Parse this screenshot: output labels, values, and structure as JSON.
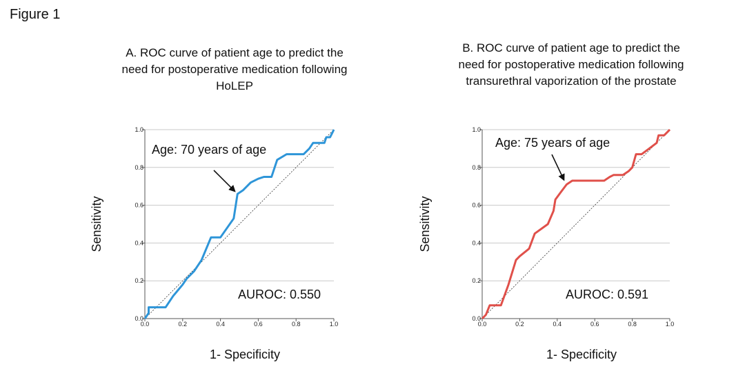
{
  "figure_label": "Figure 1",
  "chart_data": [
    {
      "type": "line",
      "title": "A. ROC curve of patient age to predict the\nneed for postoperative medication following\nHoLEP",
      "xlabel": "1- Specificity",
      "ylabel": "Sensitivity",
      "xlim": [
        0,
        1
      ],
      "ylim": [
        0,
        1
      ],
      "xticks": [
        "0.0",
        "0.2",
        "0.4",
        "0.6",
        "0.8",
        "1.0"
      ],
      "yticks": [
        "0.0",
        "0.2",
        "0.4",
        "0.6",
        "0.8",
        "1.0"
      ],
      "grid": "horizontal",
      "color": "#2e95d8",
      "annotation": "Age: 70 years of age",
      "annotation_point": [
        0.49,
        0.66
      ],
      "auroc_label": "AUROC: 0.550",
      "series": [
        {
          "x": [
            0.0,
            0.02,
            0.02,
            0.11,
            0.15,
            0.2,
            0.22,
            0.26,
            0.28,
            0.3,
            0.35,
            0.4,
            0.47,
            0.49,
            0.52,
            0.56,
            0.6,
            0.63,
            0.67,
            0.7,
            0.75,
            0.78,
            0.84,
            0.87,
            0.89,
            0.94,
            0.95,
            0.96,
            0.98,
            0.99,
            1.0
          ],
          "y": [
            0.0,
            0.03,
            0.06,
            0.06,
            0.12,
            0.18,
            0.21,
            0.25,
            0.28,
            0.31,
            0.43,
            0.43,
            0.53,
            0.66,
            0.68,
            0.72,
            0.74,
            0.75,
            0.75,
            0.84,
            0.87,
            0.87,
            0.87,
            0.9,
            0.93,
            0.93,
            0.93,
            0.96,
            0.96,
            0.98,
            1.0
          ]
        }
      ]
    },
    {
      "type": "line",
      "title": "B. ROC curve of patient age to predict the\nneed for postoperative medication following\ntransurethral vaporization of the prostate",
      "xlabel": "1- Specificity",
      "ylabel": "Sensitivity",
      "xlim": [
        0,
        1
      ],
      "ylim": [
        0,
        1
      ],
      "xticks": [
        "0.0",
        "0.2",
        "0.4",
        "0.6",
        "0.8",
        "1.0"
      ],
      "yticks": [
        "0.0",
        "0.2",
        "0.4",
        "0.6",
        "0.8",
        "1.0"
      ],
      "grid": "horizontal",
      "color": "#e0504a",
      "annotation": "Age: 75 years of age",
      "annotation_point": [
        0.45,
        0.72
      ],
      "auroc_label": "AUROC: 0.591",
      "series": [
        {
          "x": [
            0.0,
            0.02,
            0.04,
            0.1,
            0.14,
            0.18,
            0.2,
            0.25,
            0.28,
            0.35,
            0.38,
            0.39,
            0.42,
            0.45,
            0.48,
            0.52,
            0.65,
            0.68,
            0.7,
            0.75,
            0.78,
            0.8,
            0.82,
            0.85,
            0.89,
            0.93,
            0.94,
            0.97,
            0.99,
            1.0
          ],
          "y": [
            0.0,
            0.02,
            0.07,
            0.07,
            0.18,
            0.31,
            0.33,
            0.37,
            0.45,
            0.5,
            0.57,
            0.63,
            0.67,
            0.71,
            0.73,
            0.73,
            0.73,
            0.75,
            0.76,
            0.76,
            0.78,
            0.8,
            0.87,
            0.87,
            0.9,
            0.93,
            0.97,
            0.97,
            0.99,
            1.0
          ]
        }
      ]
    }
  ]
}
